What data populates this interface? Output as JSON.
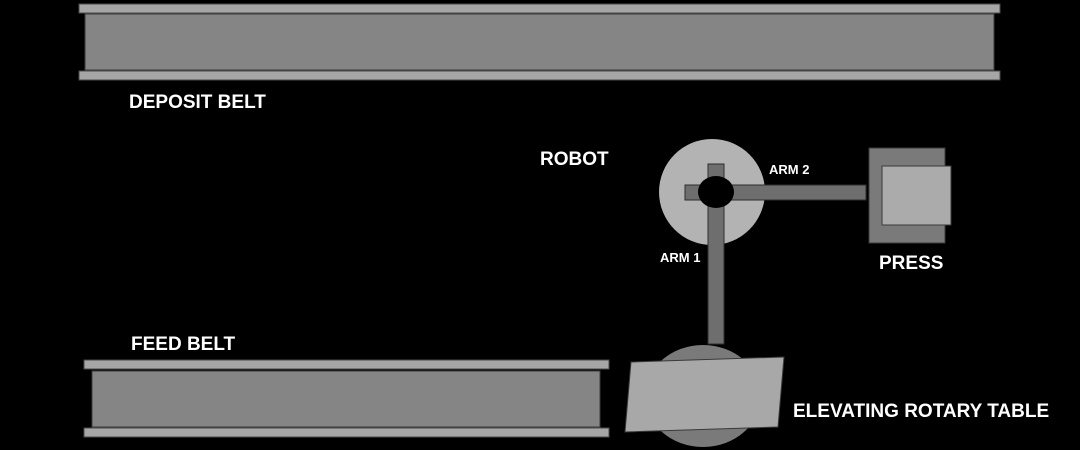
{
  "labels": {
    "deposit_belt": "DEPOSIT BELT",
    "robot": "ROBOT",
    "arm2": "ARM 2",
    "arm1": "ARM 1",
    "press": "PRESS",
    "feed_belt": "FEED BELT",
    "elevating_rotary_table": "ELEVATING ROTARY TABLE"
  },
  "colors": {
    "background": "#000000",
    "belt_rail": "#a6a6a6",
    "belt_body": "#858585",
    "robot_base": "#b3b3b3",
    "arm": "#6e6e6e",
    "press_outer": "#7a7a7a",
    "press_inner": "#ababab",
    "table_base": "#7a7a7a",
    "table_top": "#a8a8a8",
    "label_text": "#ffffff"
  }
}
